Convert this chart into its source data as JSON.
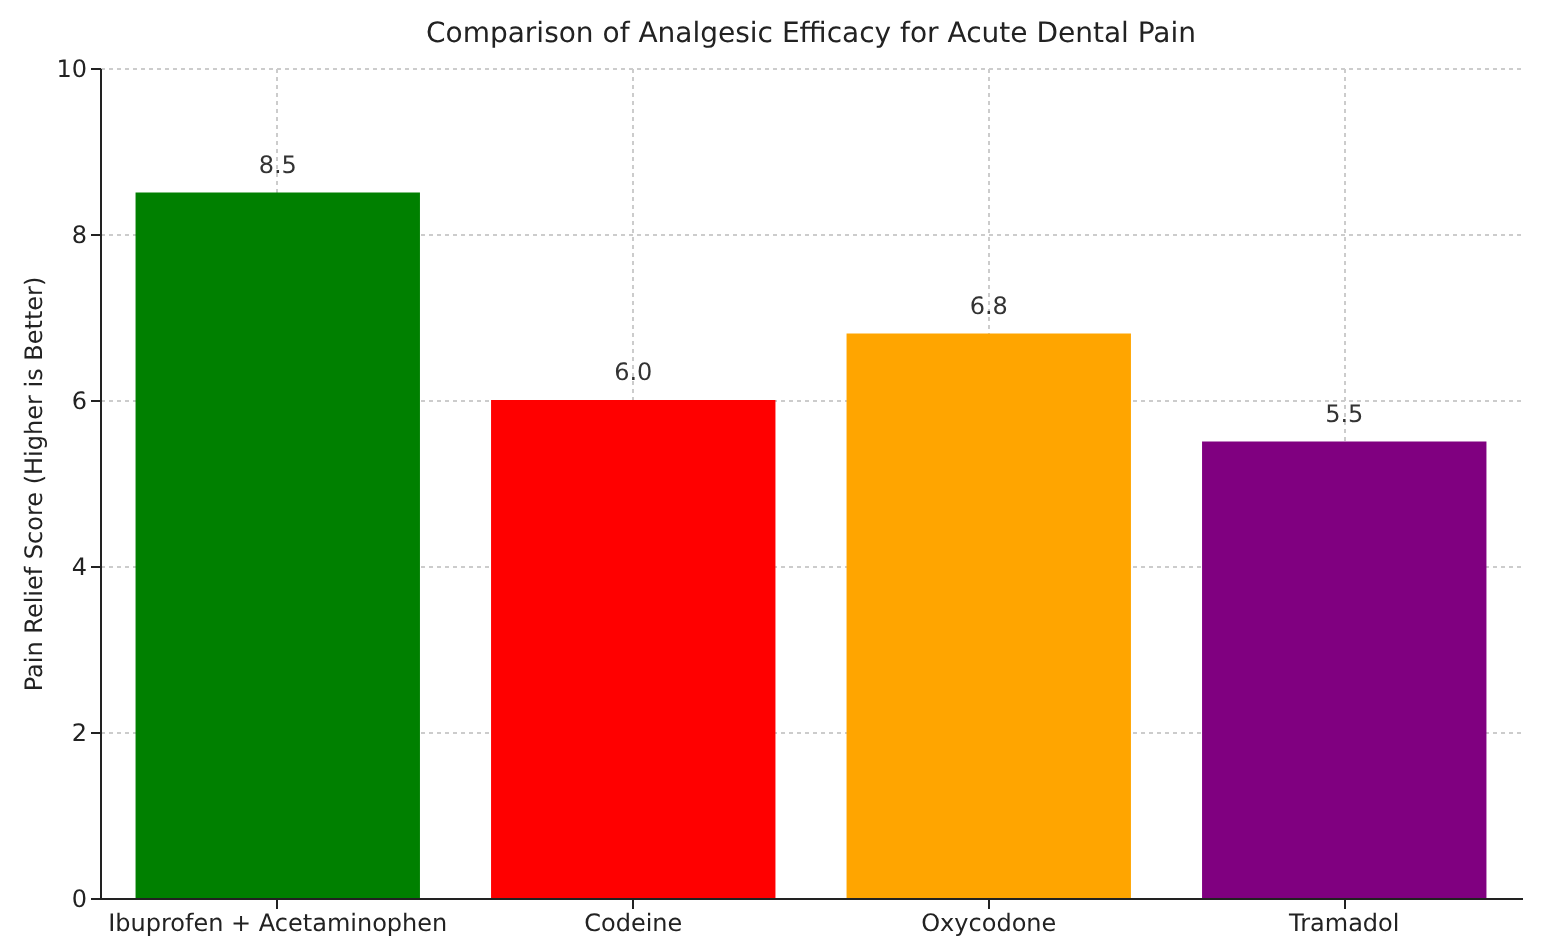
{
  "chart_data": {
    "type": "bar",
    "title": "Comparison of Analgesic Efficacy for Acute Dental Pain",
    "ylabel": "Pain Relief Score (Higher is Better)",
    "categories": [
      "Ibuprofen + Acetaminophen",
      "Codeine",
      "Oxycodone",
      "Tramadol"
    ],
    "values": [
      8.5,
      6.0,
      6.8,
      5.5
    ],
    "value_labels": [
      "8.5",
      "6.0",
      "6.8",
      "5.5"
    ],
    "colors": [
      "#008000",
      "#ff0000",
      "#ffa500",
      "#800080"
    ],
    "ylim": [
      0,
      10
    ],
    "yticks": [
      0,
      2,
      4,
      6,
      8,
      10
    ],
    "grid": true
  }
}
